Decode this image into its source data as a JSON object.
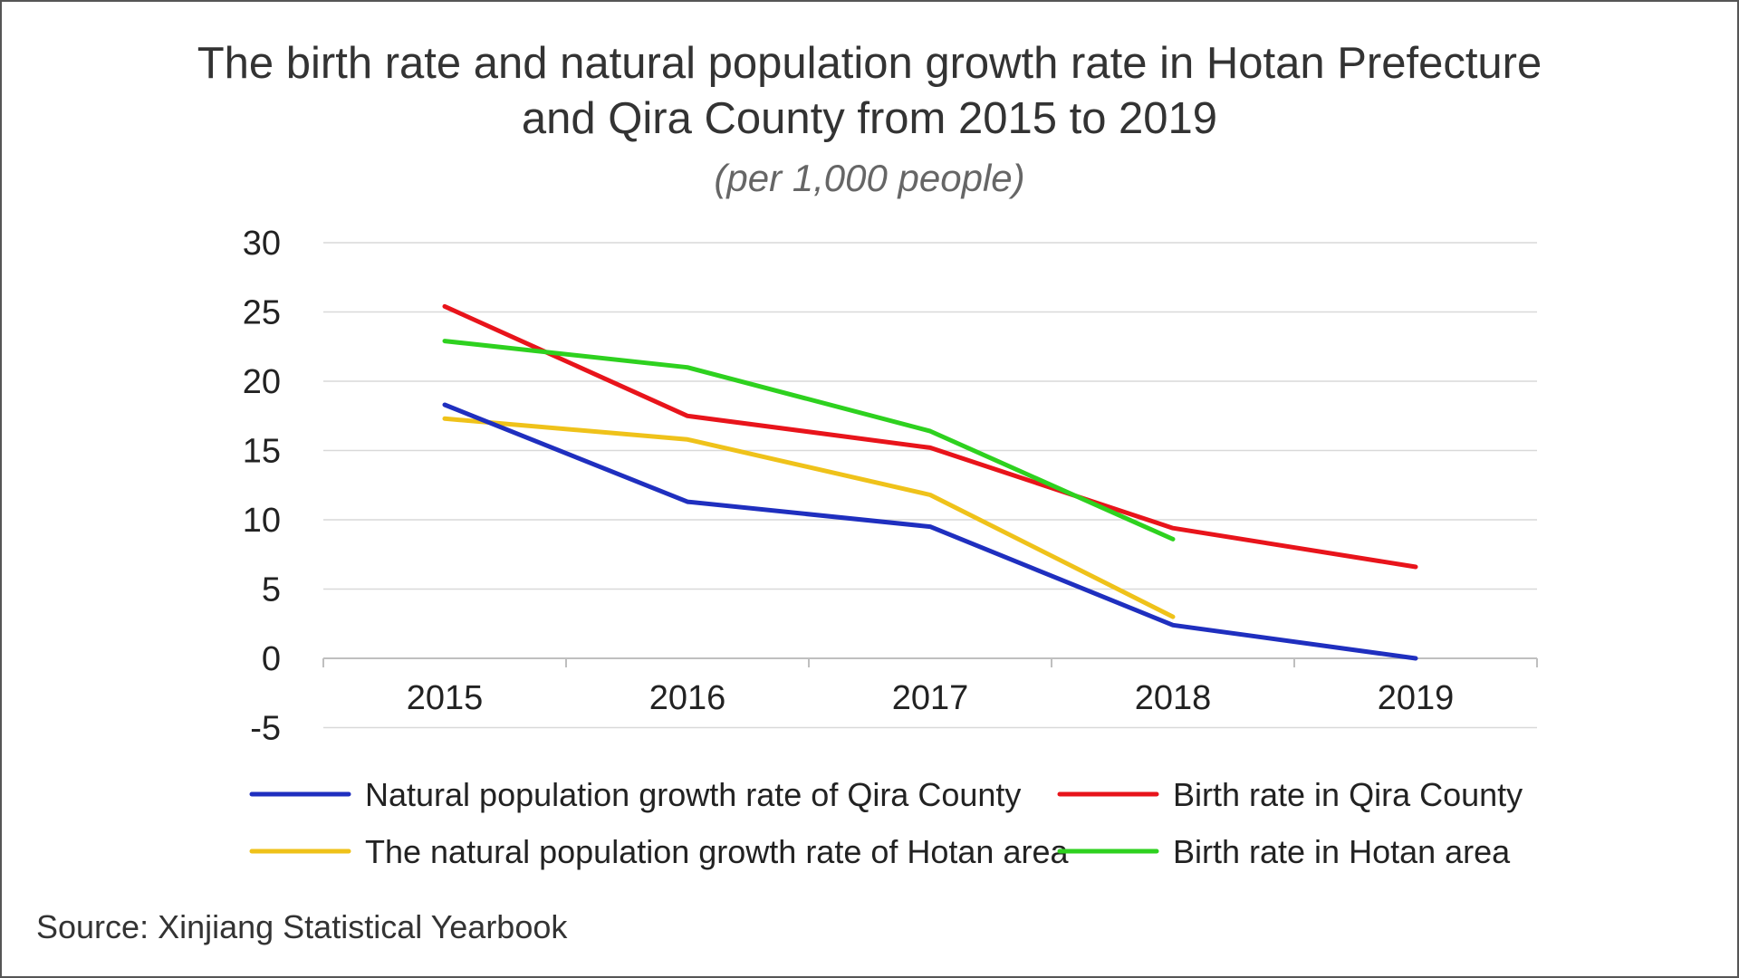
{
  "title_line1": "The birth rate and natural population growth rate in Hotan Prefecture",
  "title_line2": "and Qira County from 2015 to 2019",
  "subtitle": "(per 1,000 people)",
  "source": "Source: Xinjiang Statistical Yearbook",
  "chart_data": {
    "type": "line",
    "title": "The birth rate and natural population growth rate in Hotan Prefecture and Qira County from 2015 to 2019",
    "subtitle": "(per 1,000 people)",
    "x": [
      "2015",
      "2016",
      "2017",
      "2018",
      "2019"
    ],
    "ylim": [
      -5,
      30
    ],
    "yticks": [
      30,
      25,
      20,
      15,
      10,
      5,
      0,
      -5
    ],
    "grid": true,
    "legend_position": "bottom",
    "series": [
      {
        "name": "Natural population growth rate of Qira County",
        "color": "#1f2fbf",
        "values": [
          18.3,
          11.3,
          9.5,
          2.4,
          0
        ]
      },
      {
        "name": "Birth rate in Qira County",
        "color": "#e8141b",
        "values": [
          25.4,
          17.5,
          15.2,
          9.4,
          6.6
        ]
      },
      {
        "name": "The natural population growth rate of Hotan area",
        "color": "#efc21a",
        "values": [
          17.3,
          15.8,
          11.8,
          3.0,
          null
        ]
      },
      {
        "name": "Birth rate in Hotan area",
        "color": "#2ed11f",
        "values": [
          22.9,
          21.0,
          16.4,
          8.6,
          null
        ]
      }
    ]
  }
}
